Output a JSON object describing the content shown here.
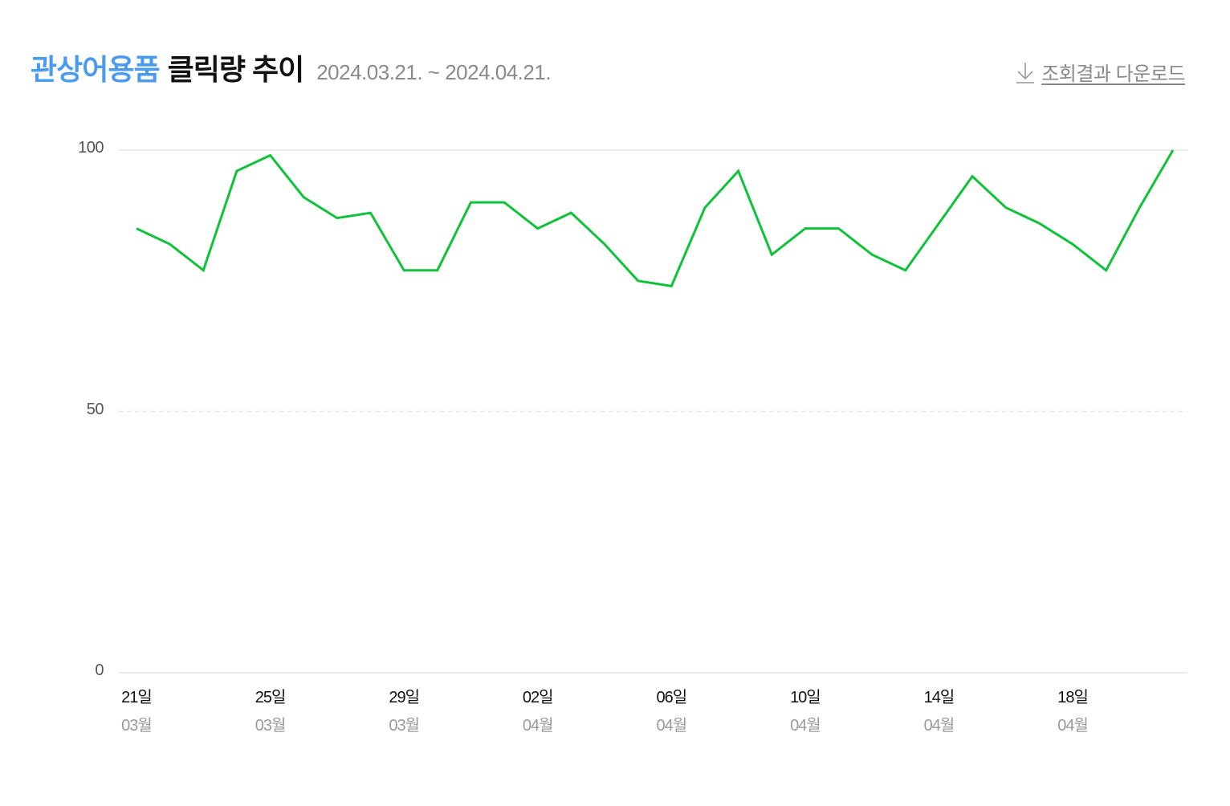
{
  "header": {
    "title_keyword": "관상어용품",
    "title_rest": "클릭량 추이",
    "date_range": "2024.03.21. ~ 2024.04.21.",
    "download_label": "조회결과 다운로드",
    "download_icon": "arrow-down-icon"
  },
  "colors": {
    "keyword": "#4a9bf0",
    "line": "#0fc23a",
    "grid": "#e6e6e6"
  },
  "y_ticks": [
    {
      "label": "100",
      "value": 100
    },
    {
      "label": "50",
      "value": 50
    },
    {
      "label": "0",
      "value": 0
    }
  ],
  "x_ticks": [
    {
      "day": "21일",
      "month": "03월",
      "index": 0
    },
    {
      "day": "25일",
      "month": "03월",
      "index": 4
    },
    {
      "day": "29일",
      "month": "03월",
      "index": 8
    },
    {
      "day": "02일",
      "month": "04월",
      "index": 12
    },
    {
      "day": "06일",
      "month": "04월",
      "index": 16
    },
    {
      "day": "10일",
      "month": "04월",
      "index": 20
    },
    {
      "day": "14일",
      "month": "04월",
      "index": 24
    },
    {
      "day": "18일",
      "month": "04월",
      "index": 28
    }
  ],
  "chart_data": {
    "type": "line",
    "title": "관상어용품 클릭량 추이",
    "subtitle": "2024.03.21. ~ 2024.04.21.",
    "xlabel": "",
    "ylabel": "",
    "ylim": [
      0,
      100
    ],
    "y_ticks": [
      0,
      50,
      100
    ],
    "grid": true,
    "legend": "none",
    "x": [
      "03-21",
      "03-22",
      "03-23",
      "03-24",
      "03-25",
      "03-26",
      "03-27",
      "03-28",
      "03-29",
      "03-30",
      "03-31",
      "04-01",
      "04-02",
      "04-03",
      "04-04",
      "04-05",
      "04-06",
      "04-07",
      "04-08",
      "04-09",
      "04-10",
      "04-11",
      "04-12",
      "04-13",
      "04-14",
      "04-15",
      "04-16",
      "04-17",
      "04-18",
      "04-19",
      "04-20",
      "04-21"
    ],
    "series": [
      {
        "name": "클릭량",
        "color": "#0fc23a",
        "values": [
          85,
          82,
          77,
          96,
          99,
          91,
          87,
          88,
          77,
          77,
          90,
          90,
          85,
          88,
          82,
          75,
          74,
          89,
          96,
          80,
          85,
          85,
          80,
          77,
          86,
          95,
          89,
          86,
          82,
          77,
          89,
          100
        ]
      }
    ]
  }
}
